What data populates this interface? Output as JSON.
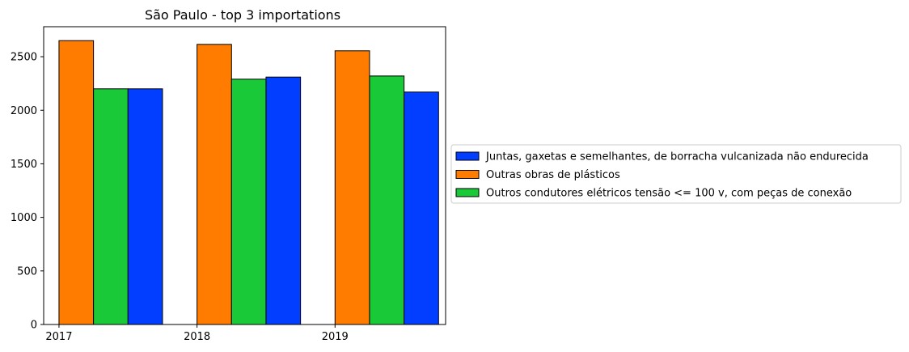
{
  "chart_data": {
    "type": "bar",
    "title": "São Paulo - top 3 importations",
    "xlabel": "",
    "ylabel": "",
    "x_ticks": [
      "2017",
      "2018",
      "2019"
    ],
    "y_ticks": [
      0,
      500,
      1000,
      1500,
      2000,
      2500
    ],
    "ylim": [
      0,
      2780
    ],
    "grid": false,
    "legend_position": "center-left outside right",
    "bar_order": [
      "Outras obras de plásticos",
      "Outros condutores elétricos tensão <= 100 v, com peças de conexão",
      "Juntas, gaxetas e semelhantes, de borracha vulcanizada não endurecida"
    ],
    "series": [
      {
        "name": "Juntas, gaxetas e semelhantes, de borracha vulcanizada não endurecida",
        "color": "#023eff",
        "values": [
          2200,
          2310,
          2170
        ]
      },
      {
        "name": "Outras obras de plásticos",
        "color": "#ff7c00",
        "values": [
          2650,
          2615,
          2555
        ]
      },
      {
        "name": "Outros condutores elétricos tensão <= 100 v, com peças de conexão",
        "color": "#1ac938",
        "values": [
          2200,
          2290,
          2320
        ]
      }
    ]
  }
}
